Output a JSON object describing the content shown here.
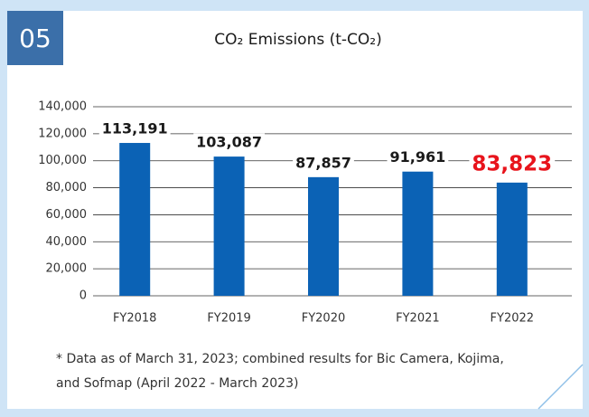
{
  "chart_data": {
    "type": "bar",
    "badge": "05",
    "title": "CO₂ Emissions (t-CO₂)",
    "categories": [
      "FY2018",
      "FY2019",
      "FY2020",
      "FY2021",
      "FY2022"
    ],
    "values": [
      113191,
      103087,
      87857,
      91961,
      83823
    ],
    "value_labels": [
      "113,191",
      "103,087",
      "87,857",
      "91,961",
      "83,823"
    ],
    "value_label_colors": [
      "#1a1a1a",
      "#1a1a1a",
      "#1a1a1a",
      "#1a1a1a",
      "#e8141c"
    ],
    "color": "#0b62b5",
    "ylim": [
      0,
      140000
    ],
    "yticks": [
      0,
      {
        "value": 20000,
        "label": "20,000"
      },
      {
        "value": 40000,
        "label": "40,000"
      },
      {
        "value": 60000,
        "label": "60,000"
      },
      {
        "value": 80000,
        "label": "80,000"
      },
      {
        "value": 100000,
        "label": "100,000"
      },
      {
        "value": 120000,
        "label": "120,000"
      },
      {
        "value": 140000,
        "label": "140,000"
      }
    ],
    "grid": true,
    "footnote": [
      "* Data as of March 31, 2023; combined results for Bic Camera, Kojima,",
      "and Sofmap (April 2022 - March 2023)"
    ]
  }
}
